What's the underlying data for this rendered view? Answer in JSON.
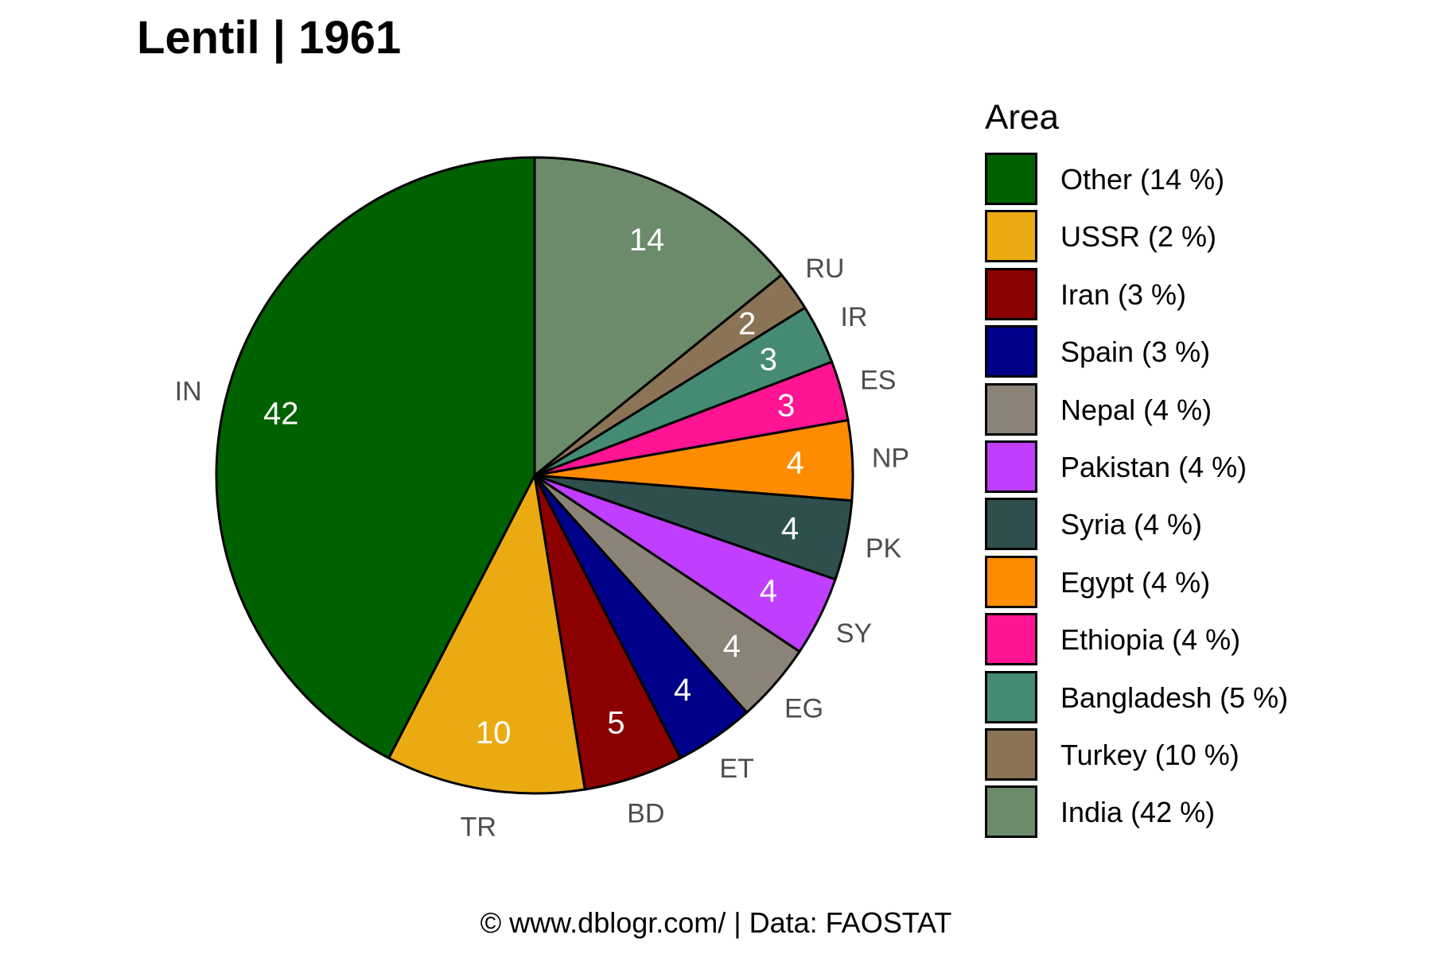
{
  "chart_data": {
    "type": "pie",
    "title": "Lentil | 1961",
    "legend_title": "Area",
    "legend_position": "right",
    "slices": [
      {
        "code": "",
        "name": "Other",
        "value": 14,
        "color": "#6B8B6B"
      },
      {
        "code": "RU",
        "name": "USSR",
        "value": 2,
        "color": "#8B7355"
      },
      {
        "code": "IR",
        "name": "Iran",
        "value": 3,
        "color": "#458B74"
      },
      {
        "code": "ES",
        "name": "Spain",
        "value": 3,
        "color": "#FF1493"
      },
      {
        "code": "NP",
        "name": "Nepal",
        "value": 4,
        "color": "#FF8C00"
      },
      {
        "code": "PK",
        "name": "Pakistan",
        "value": 4,
        "color": "#2F4F4F"
      },
      {
        "code": "SY",
        "name": "Syria",
        "value": 4,
        "color": "#BF3EFF"
      },
      {
        "code": "EG",
        "name": "Egypt",
        "value": 4,
        "color": "#8B8378"
      },
      {
        "code": "ET",
        "name": "Ethiopia",
        "value": 4,
        "color": "#00008B"
      },
      {
        "code": "BD",
        "name": "Bangladesh",
        "value": 5,
        "color": "#8B0000"
      },
      {
        "code": "TR",
        "name": "Turkey",
        "value": 10,
        "color": "#EAAB12"
      },
      {
        "code": "IN",
        "name": "India",
        "value": 42,
        "color": "#006100"
      }
    ],
    "legend": [
      {
        "label": "Other (14 %)",
        "color": "#006100"
      },
      {
        "label": "USSR (2 %)",
        "color": "#EAAB12"
      },
      {
        "label": "Iran (3 %)",
        "color": "#8B0000"
      },
      {
        "label": "Spain (3 %)",
        "color": "#00008B"
      },
      {
        "label": "Nepal (4 %)",
        "color": "#8B8378"
      },
      {
        "label": "Pakistan (4 %)",
        "color": "#BF3EFF"
      },
      {
        "label": "Syria (4 %)",
        "color": "#2F4F4F"
      },
      {
        "label": "Egypt (4 %)",
        "color": "#FF8C00"
      },
      {
        "label": "Ethiopia (4 %)",
        "color": "#FF1493"
      },
      {
        "label": "Bangladesh (5 %)",
        "color": "#458B74"
      },
      {
        "label": "Turkey (10 %)",
        "color": "#8B7355"
      },
      {
        "label": "India (42 %)",
        "color": "#6B8B6B"
      }
    ]
  },
  "caption": "© www.dblogr.com/  |  Data: FAOSTAT"
}
